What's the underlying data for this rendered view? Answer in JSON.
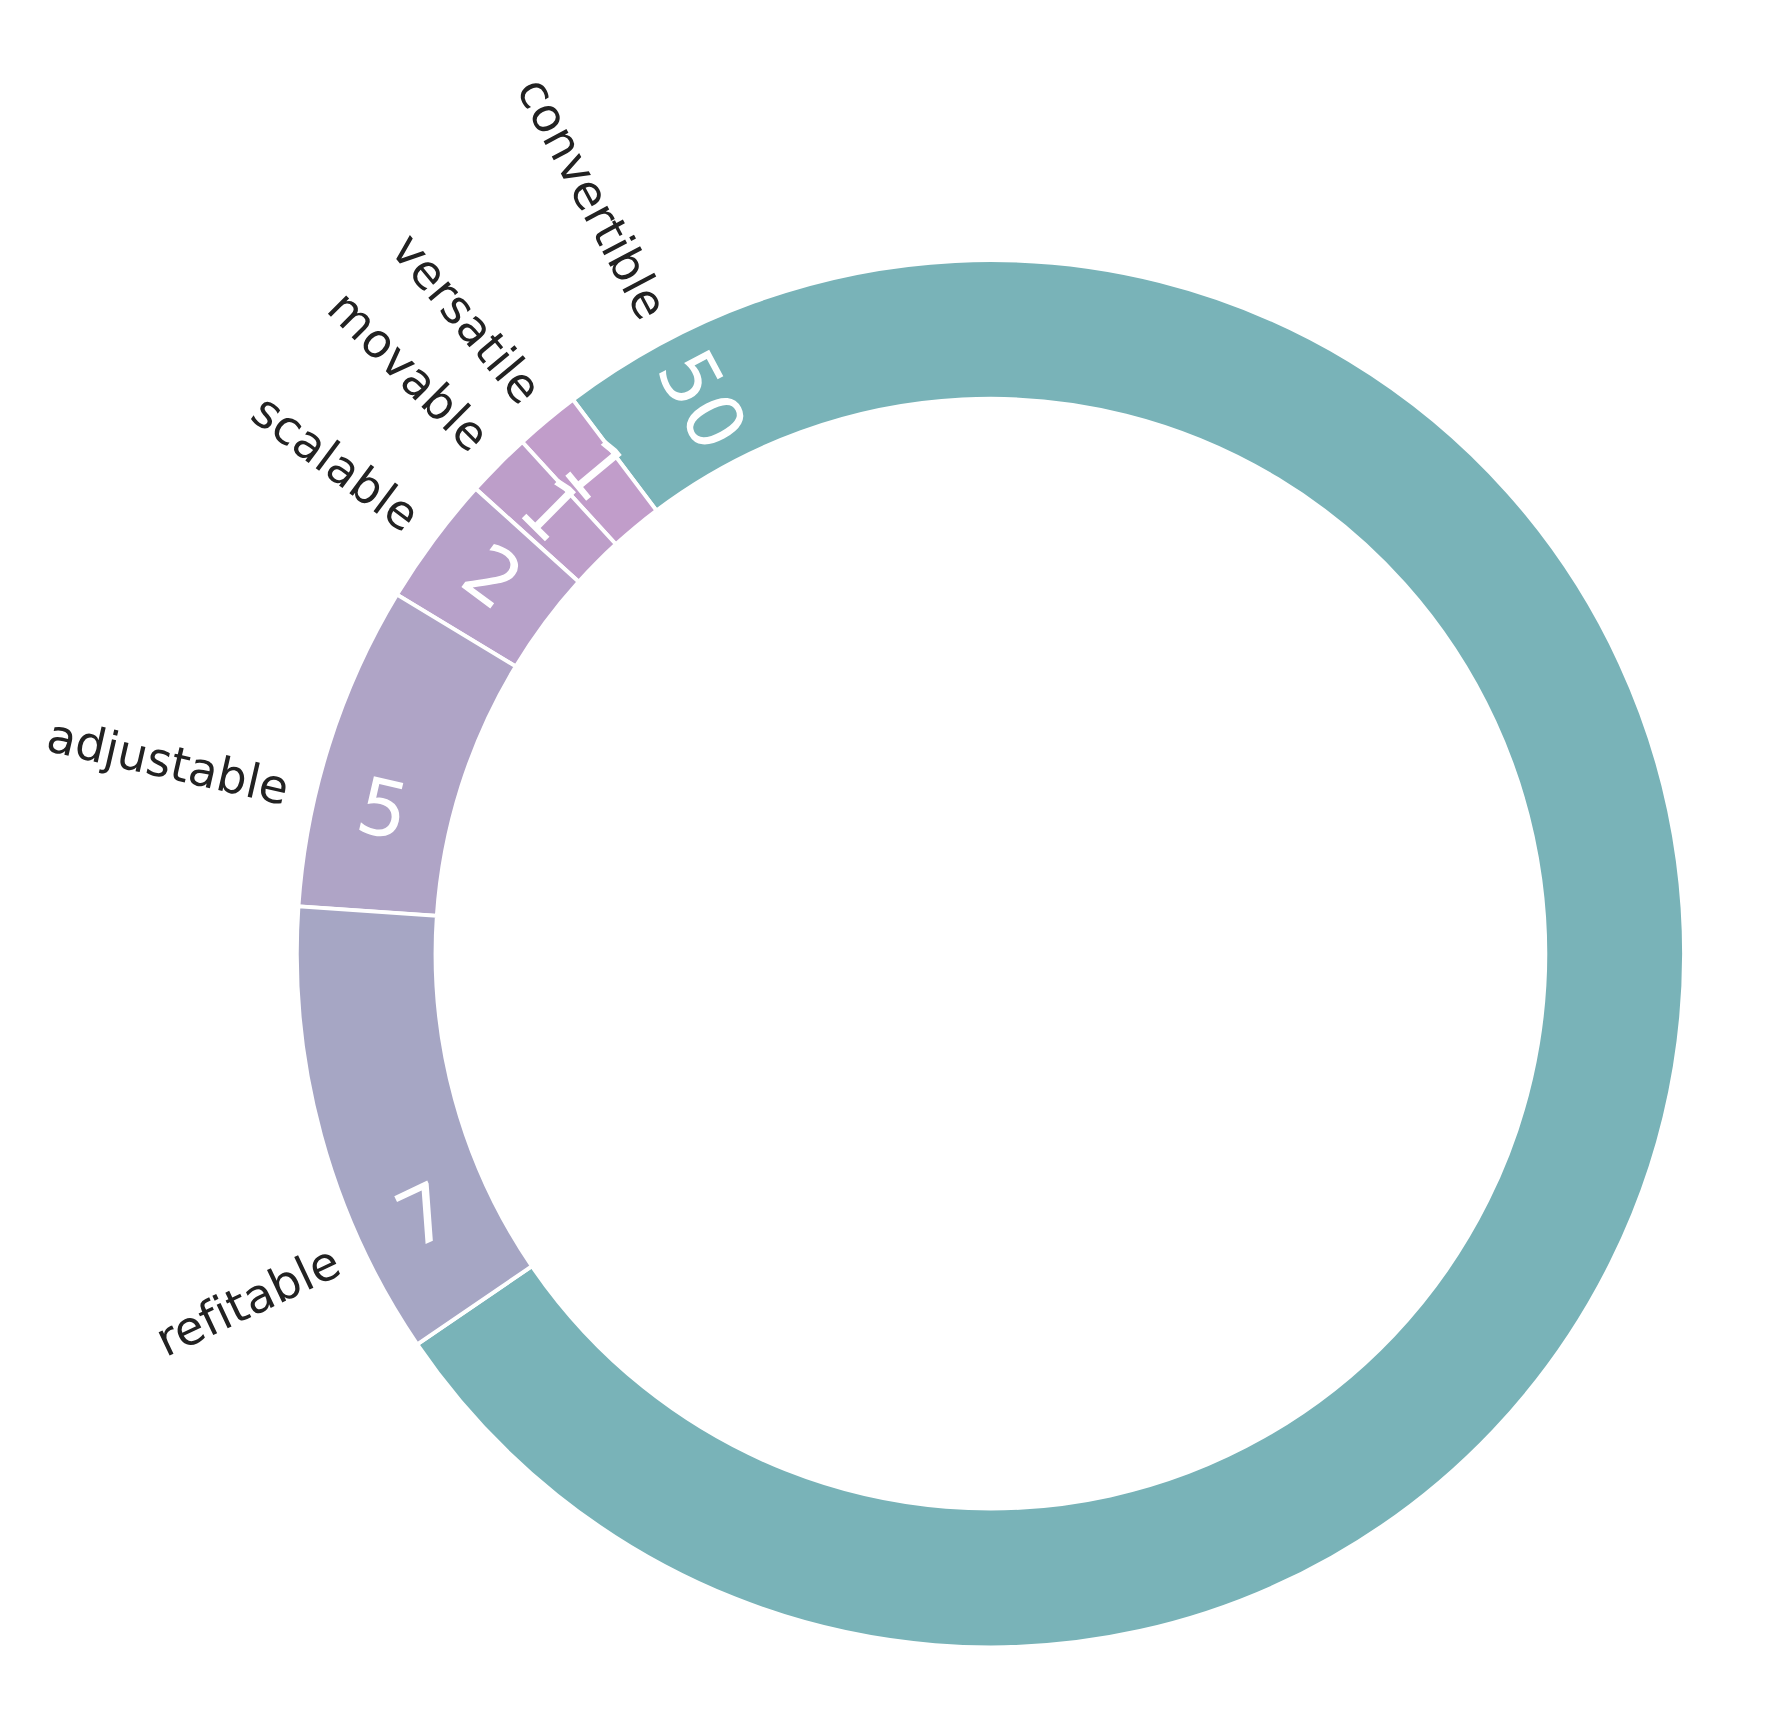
{
  "chart_data": {
    "type": "donut",
    "categories": [
      "convertible",
      "versatile",
      "movable",
      "scalable",
      "adjustable",
      "refitable"
    ],
    "values": [
      50,
      1,
      1,
      2,
      5,
      7
    ],
    "colors": [
      "#79b3b8",
      "#c19dca",
      "#bd9ec9",
      "#b7a1c9",
      "#afa4c6",
      "#a6a6c4"
    ],
    "data_labels": true,
    "legend": false
  }
}
